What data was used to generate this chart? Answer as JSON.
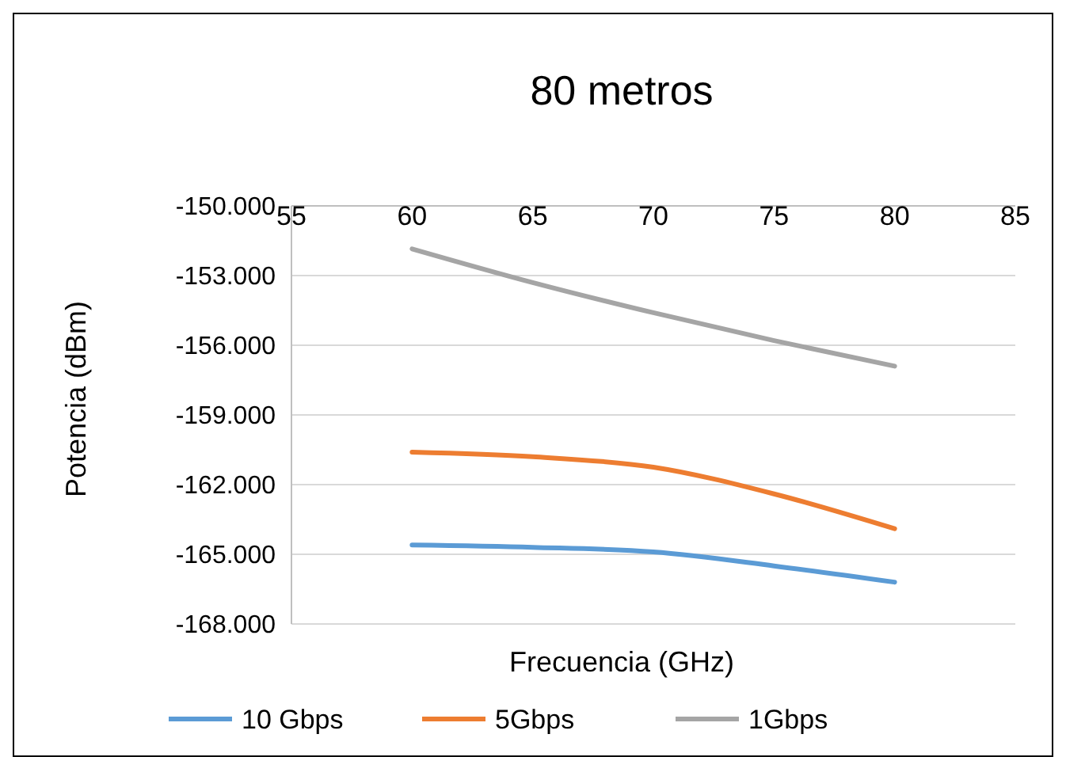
{
  "chart_data": {
    "type": "line",
    "title": "80 metros",
    "xlabel": "Frecuencia (GHz)",
    "ylabel": "Potencia (dBm)",
    "x": [
      60,
      65,
      70,
      75,
      80
    ],
    "xlim": [
      55,
      85
    ],
    "xticks": [
      55,
      60,
      65,
      70,
      75,
      80,
      85
    ],
    "ylim": [
      -168,
      -150
    ],
    "yticks": [
      {
        "value": -150,
        "label": "-150.000"
      },
      {
        "value": -153,
        "label": "-153.000"
      },
      {
        "value": -156,
        "label": "-156.000"
      },
      {
        "value": -159,
        "label": "-159.000"
      },
      {
        "value": -162,
        "label": "-162.000"
      },
      {
        "value": -165,
        "label": "-165.000"
      },
      {
        "value": -168,
        "label": "-168.000"
      }
    ],
    "grid": "y",
    "legend": "bottom",
    "marker": "none",
    "line_style": "solid",
    "series": [
      {
        "name": "10 Gbps",
        "color": "#5b9bd5",
        "values": [
          -164.6,
          -164.7,
          -164.9,
          -165.5,
          -166.2
        ]
      },
      {
        "name": "5Gbps",
        "color": "#ed7d31",
        "values": [
          -160.6,
          -160.8,
          -161.25,
          -162.4,
          -163.9
        ]
      },
      {
        "name": "1Gbps",
        "color": "#a5a5a5",
        "values": [
          -151.85,
          -153.3,
          -154.6,
          -155.8,
          -156.9
        ]
      }
    ]
  }
}
